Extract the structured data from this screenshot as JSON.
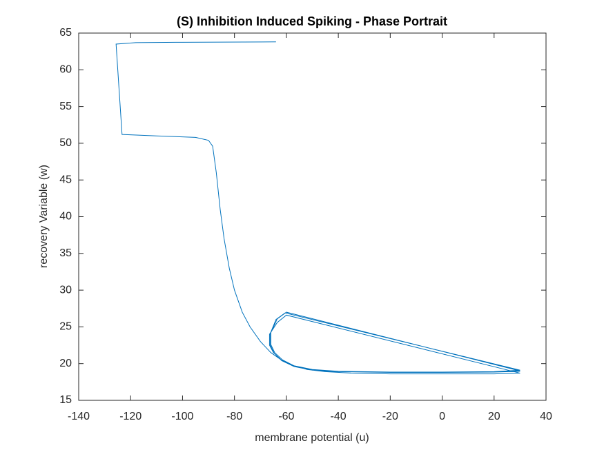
{
  "chart_data": {
    "type": "line",
    "title": "(S) Inhibition Induced Spiking - Phase Portrait",
    "x_label": "membrane potential (u)",
    "y_label": "recovery Variable (w)",
    "xlim": [
      -140,
      40
    ],
    "ylim": [
      15,
      65
    ],
    "xticks": [
      -140,
      -120,
      -100,
      -80,
      -60,
      -40,
      -20,
      0,
      20,
      40
    ],
    "yticks": [
      15,
      20,
      25,
      30,
      35,
      40,
      45,
      50,
      55,
      60,
      65
    ],
    "grid": false,
    "series": [
      {
        "name": "trajectory",
        "color": "#0072bd",
        "x": [
          -64,
          -100,
          -118,
          -125.6,
          -123.3,
          -110,
          -95,
          -90,
          -88.4,
          -87,
          -85.5,
          -84,
          -82,
          -80,
          -77,
          -74,
          -70,
          -66,
          -62,
          -58,
          -52,
          -45,
          -35,
          -20,
          0,
          20,
          30,
          -60,
          -63.5,
          -66.5,
          -66.5,
          -65,
          -62,
          -57,
          -50,
          -40,
          -20,
          0,
          20,
          30,
          -60,
          -63.5,
          -66,
          -66,
          -64.5,
          -61.5,
          -57,
          -50,
          -40,
          -20,
          0,
          20,
          30,
          -60.5,
          -64,
          -66.2,
          -66.2,
          -64.7,
          -61.8,
          -57,
          -50,
          -40,
          -20,
          0,
          20,
          30
        ],
        "y": [
          63.8,
          63.75,
          63.7,
          63.5,
          51.2,
          51,
          50.8,
          50.4,
          49.6,
          46,
          41,
          37,
          33,
          30,
          27,
          25,
          23,
          21.5,
          20.5,
          19.8,
          19.2,
          18.9,
          18.7,
          18.6,
          18.6,
          18.6,
          18.7,
          26.6,
          25.6,
          24,
          22.5,
          21.5,
          20.5,
          19.7,
          19.2,
          18.95,
          18.85,
          18.85,
          18.9,
          19,
          27,
          26.1,
          24.2,
          22.6,
          21.5,
          20.5,
          19.7,
          19.2,
          18.95,
          18.85,
          18.85,
          18.9,
          19.1,
          26.9,
          26,
          24.1,
          22.5,
          21.4,
          20.4,
          19.6,
          19.1,
          18.9,
          18.8,
          18.8,
          18.85,
          18.95
        ]
      }
    ]
  }
}
